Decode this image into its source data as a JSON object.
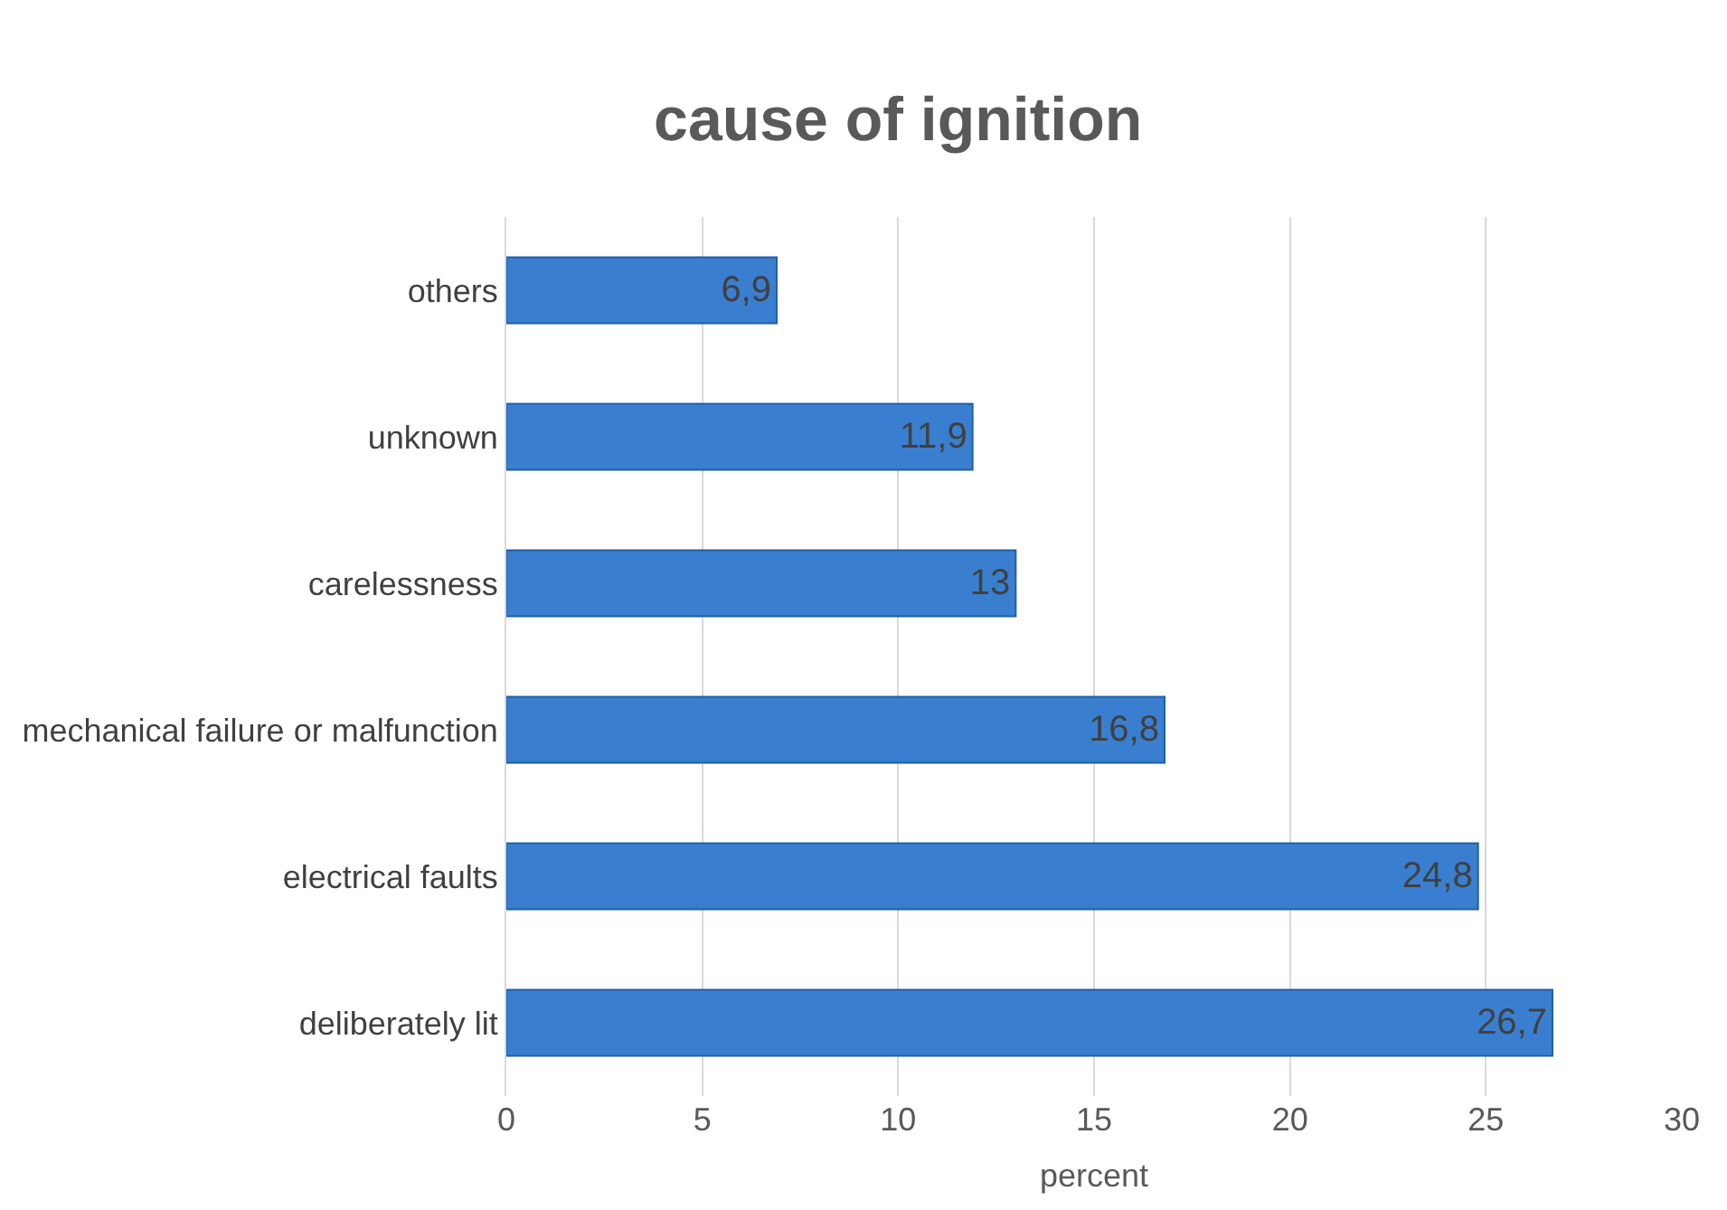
{
  "chart_data": {
    "type": "bar",
    "title": "cause of ignition",
    "xlabel": "percent",
    "orientation": "horizontal",
    "categories": [
      "others",
      "unknown",
      "carelessness",
      "mechanical failure or malfunction",
      "electrical faults",
      "deliberately lit"
    ],
    "values": [
      6.9,
      11.9,
      13,
      16.8,
      24.8,
      26.7
    ],
    "value_labels": [
      "6,9",
      "11,9",
      "13",
      "16,8",
      "24,8",
      "26,7"
    ],
    "color": "#3a7fcf",
    "xlim": [
      0,
      30
    ],
    "xticks": [
      0,
      5,
      10,
      15,
      20,
      25,
      30
    ],
    "grid": "x",
    "legend": false
  }
}
